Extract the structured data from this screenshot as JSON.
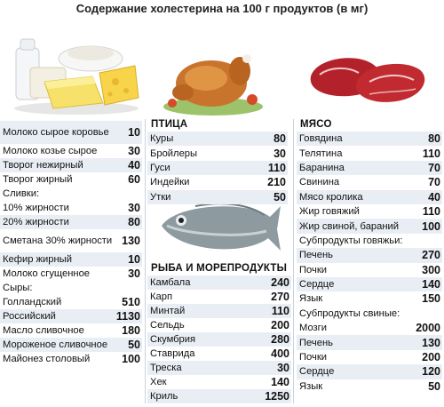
{
  "title": "Содержание холестерина на 100 г продуктов (в мг)",
  "col1": [
    {
      "n": "Молоко сырое коровье",
      "v": "10",
      "h": 26
    },
    {
      "n": "Молоко козье сырое",
      "v": "30",
      "h": 16
    },
    {
      "n": "Творог нежирный",
      "v": "40",
      "h": 16
    },
    {
      "n": "Творог жирный",
      "v": "60",
      "h": 16
    },
    {
      "n": "Сливки:",
      "v": "",
      "h": 16,
      "head": true
    },
    {
      "n": "10% жирности",
      "v": "30",
      "h": 16
    },
    {
      "n": "20% жирности",
      "v": "80",
      "h": 16
    },
    {
      "n": "Сметана 30% жирности",
      "v": "130",
      "h": 26
    },
    {
      "n": "Кефир жирный",
      "v": "10",
      "h": 16
    },
    {
      "n": "Молоко сгущенное",
      "v": "30",
      "h": 16
    },
    {
      "n": "Сыры:",
      "v": "",
      "h": 16,
      "head": true
    },
    {
      "n": "Голландский",
      "v": "510",
      "h": 16
    },
    {
      "n": "Российский",
      "v": "1130",
      "h": 16
    },
    {
      "n": "Масло сливочное",
      "v": "180",
      "h": 16
    },
    {
      "n": "Мороженое сливочное",
      "v": "50",
      "h": 16
    },
    {
      "n": "Майонез столовый",
      "v": "100",
      "h": 16
    }
  ],
  "poultry_title": "ПТИЦА",
  "poultry": [
    {
      "n": "Куры",
      "v": "80"
    },
    {
      "n": "Бройлеры",
      "v": "30"
    },
    {
      "n": "Гуси",
      "v": "110"
    },
    {
      "n": "Индейки",
      "v": "210"
    },
    {
      "n": "Утки",
      "v": "50"
    }
  ],
  "fish_title": "РЫБА И МОРЕПРОДУКТЫ",
  "fish": [
    {
      "n": "Камбала",
      "v": "240"
    },
    {
      "n": "Карп",
      "v": "270"
    },
    {
      "n": "Минтай",
      "v": "110"
    },
    {
      "n": "Сельдь",
      "v": "200"
    },
    {
      "n": "Скумбрия",
      "v": "280"
    },
    {
      "n": "Ставрида",
      "v": "400"
    },
    {
      "n": "Треска",
      "v": "30"
    },
    {
      "n": "Хек",
      "v": "140"
    },
    {
      "n": "Криль",
      "v": "1250"
    }
  ],
  "meat_title": "МЯСО",
  "meat": [
    {
      "n": "Говядина",
      "v": "80"
    },
    {
      "n": "Телятина",
      "v": "110"
    },
    {
      "n": "Баранина",
      "v": "70"
    },
    {
      "n": "Свинина",
      "v": "70"
    },
    {
      "n": "Мясо кролика",
      "v": "40"
    },
    {
      "n": "Жир говяжий",
      "v": "110"
    },
    {
      "n": "Жир свиной, бараний",
      "v": "100"
    },
    {
      "n": "Субпродукты говяжьи:",
      "v": "",
      "head": true
    },
    {
      "n": "Печень",
      "v": "270"
    },
    {
      "n": "Почки",
      "v": "300"
    },
    {
      "n": "Сердце",
      "v": "140"
    },
    {
      "n": "Язык",
      "v": "150"
    },
    {
      "n": "Субпродукты свиные:",
      "v": "",
      "head": true
    },
    {
      "n": "Мозги",
      "v": "2000"
    },
    {
      "n": "Печень",
      "v": "130"
    },
    {
      "n": "Почки",
      "v": "200"
    },
    {
      "n": "Сердце",
      "v": "120"
    },
    {
      "n": "Язык",
      "v": "50"
    }
  ]
}
